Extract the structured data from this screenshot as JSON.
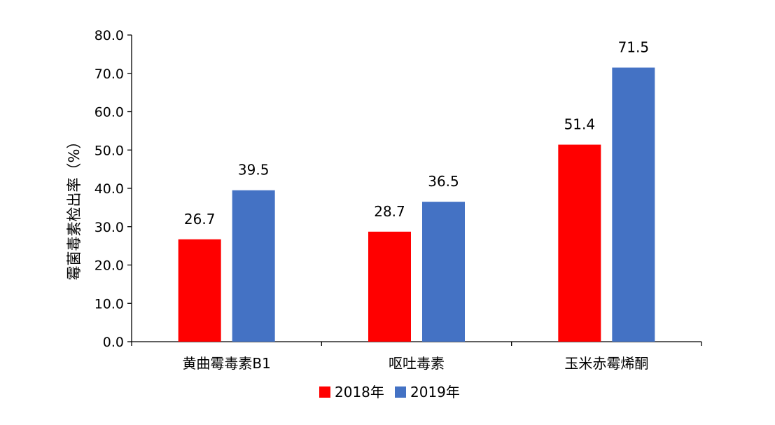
{
  "chart_data": {
    "type": "bar",
    "categories": [
      "黄曲霉毒素B1",
      "呕吐毒素",
      "玉米赤霉烯酮"
    ],
    "series": [
      {
        "name": "2018年",
        "color": "#ff0000",
        "values": [
          26.7,
          28.7,
          51.4
        ]
      },
      {
        "name": "2019年",
        "color": "#4472c4",
        "values": [
          39.5,
          36.5,
          71.5
        ]
      }
    ],
    "data_labels": [
      [
        "26.7",
        "28.7",
        "51.4"
      ],
      [
        "39.5",
        "36.5",
        "71.5"
      ]
    ],
    "xlabel": "",
    "ylabel": "霉菌毒素检出率（%）",
    "ylim": [
      0,
      80
    ],
    "yticks": [
      "0.0",
      "10.0",
      "20.0",
      "30.0",
      "40.0",
      "50.0",
      "60.0",
      "70.0",
      "80.0"
    ],
    "grid": false,
    "legend_position": "bottom-center"
  }
}
